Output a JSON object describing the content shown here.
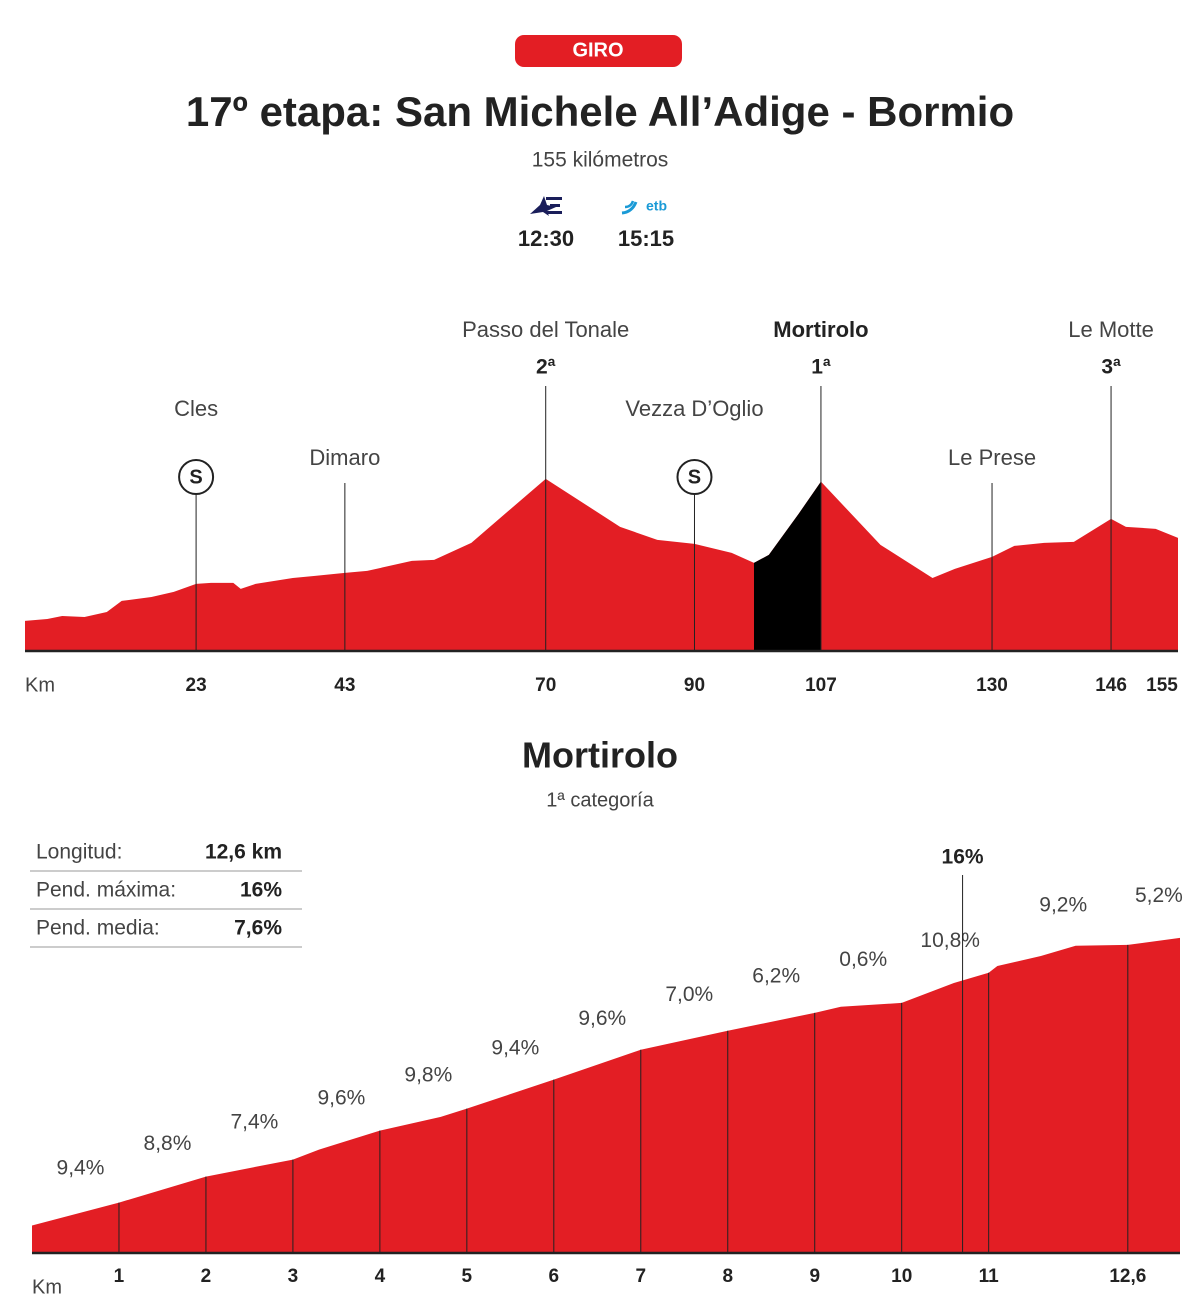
{
  "header": {
    "tag": "GIRO",
    "title": "17º etapa: San Michele All’Adige - Bormio",
    "subtitle": "155 kilómetros",
    "broadcasts": [
      {
        "time": "12:30"
      },
      {
        "logo": "etb",
        "time": "15:15"
      }
    ]
  },
  "chart_data": [
    {
      "type": "area",
      "xlabel": "Km",
      "xlim": [
        0,
        155
      ],
      "ylim": [
        0,
        2800
      ],
      "x": [
        0,
        3,
        5,
        8,
        11,
        13,
        17,
        20,
        23,
        25,
        28,
        29,
        31,
        36,
        39,
        43,
        46,
        52,
        55,
        60,
        70,
        80,
        85,
        90,
        95,
        98,
        100,
        104,
        107,
        115,
        122,
        125,
        130,
        133,
        137,
        141,
        146,
        148,
        152,
        155
      ],
      "series": [
        {
          "color": "#e31e24",
          "values": [
            329,
            350,
            383,
            372,
            427,
            548,
            591,
            646,
            734,
            745,
            745,
            679,
            734,
            799,
            821,
            854,
            876,
            986,
            996,
            1183,
            1883,
            1358,
            1215,
            1172,
            1073,
            964,
            1051,
            1500,
            1852,
            1161,
            799,
            898,
            1029,
            1150,
            1183,
            1194,
            1445,
            1358,
            1336,
            1237
          ]
        },
        {
          "color": "#000000",
          "values": [
            null,
            null,
            null,
            null,
            null,
            null,
            null,
            null,
            null,
            null,
            null,
            null,
            null,
            null,
            null,
            null,
            null,
            null,
            null,
            null,
            null,
            null,
            null,
            null,
            null,
            964,
            1051,
            1500,
            1852,
            null,
            null,
            null,
            null,
            null,
            null,
            null,
            null,
            null,
            null,
            null
          ]
        }
      ],
      "xticks": [
        23,
        43,
        70,
        90,
        107,
        130,
        146,
        155
      ],
      "markers": [
        {
          "x": 23,
          "name": "Cles",
          "sprint": "S"
        },
        {
          "x": 43,
          "name": "Dimaro"
        },
        {
          "x": 70,
          "name": "Passo del Tonale",
          "category": "2ª"
        },
        {
          "x": 90,
          "name": "Vezza D’Oglio",
          "sprint": "S"
        },
        {
          "x": 107,
          "name": "Mortirolo",
          "category": "1ª"
        },
        {
          "x": 130,
          "name": "Le Prese"
        },
        {
          "x": 146,
          "name": "Le Motte",
          "category": "3ª"
        }
      ]
    },
    {
      "type": "area",
      "title": "Mortirolo",
      "subtitle": "1ª categoría",
      "xlabel": "Km",
      "xlim": [
        0,
        13.2
      ],
      "ylim": [
        800,
        2200
      ],
      "x": [
        0,
        1,
        2,
        3,
        3.3,
        4,
        4.7,
        5,
        6,
        7,
        8,
        9,
        9.3,
        10,
        10.6,
        11,
        11.1,
        11.6,
        12,
        12.6,
        13.2
      ],
      "series": [
        {
          "color": "#e31e24",
          "values": [
            894,
            972,
            1061,
            1119,
            1153,
            1218,
            1265,
            1293,
            1392,
            1494,
            1559,
            1620,
            1641,
            1654,
            1722,
            1757,
            1780,
            1814,
            1849,
            1852,
            1876
          ]
        }
      ],
      "xticks": [
        1,
        2,
        3,
        4,
        5,
        6,
        7,
        8,
        9,
        10,
        11,
        {
          "value": 12.6,
          "label": "12,6"
        }
      ],
      "gradients": {
        "values": [
          9.4,
          8.8,
          7.4,
          9.6,
          9.8,
          9.4,
          9.6,
          7.0,
          6.2,
          0.6,
          10.8,
          9.2,
          5.2
        ],
        "value_labels": [
          "9,4%",
          "8,8%",
          "7,4%",
          "9,6%",
          "9,8%",
          "9,4%",
          "9,6%",
          "7,0%",
          "6,2%",
          "0,6%",
          "10,8%",
          "9,2%",
          "5,2%"
        ]
      },
      "max_gradient": {
        "x": 10.7,
        "value": 16,
        "value_label": "16%"
      }
    }
  ],
  "climb_stats": [
    [
      "Longitud:",
      "12,6 km"
    ],
    [
      "Pend. máxima:",
      "16%"
    ],
    [
      "Pend. media:",
      "7,6%"
    ]
  ]
}
